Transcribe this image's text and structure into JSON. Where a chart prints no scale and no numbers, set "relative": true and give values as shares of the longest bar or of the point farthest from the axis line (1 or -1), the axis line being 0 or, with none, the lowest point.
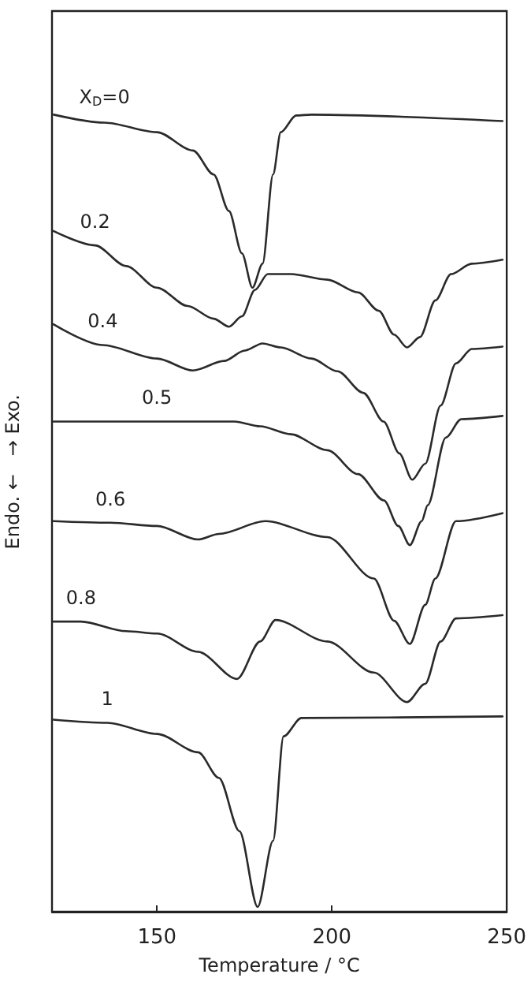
{
  "chart_data": {
    "type": "line",
    "xlabel": "Temperature / °C",
    "ylabel": "Endo. ←   → Exo.",
    "xlim": [
      120,
      250
    ],
    "xticks": [
      150,
      200,
      250
    ],
    "relative": true,
    "marker": "none",
    "line_style": "solid",
    "series": [
      {
        "name": "X$_{D}$=0",
        "color": "#2a2a2a",
        "x": [
          120.5,
          135,
          150,
          160.3,
          166.2,
          170.6,
          174.3,
          177.3,
          180.2,
          183.2,
          185.4,
          189.8,
          194.2,
          248.8
        ],
        "values": [
          1.0,
          0.99,
          0.978,
          0.955,
          0.925,
          0.879,
          0.826,
          0.783,
          0.813,
          0.925,
          0.978,
          0.999,
          1.0,
          0.992
        ]
      },
      {
        "name": "0.2",
        "color": "#2a2a2a",
        "x": [
          120.4,
          132.3,
          141.2,
          150,
          158.8,
          166.2,
          170.6,
          174.3,
          178.0,
          181.7,
          188.3,
          198.7,
          207.5,
          213.4,
          217.8,
          221.5,
          225.2,
          229.6,
          234.1,
          240.0,
          248.8
        ],
        "values": [
          0.854,
          0.836,
          0.81,
          0.783,
          0.76,
          0.744,
          0.734,
          0.747,
          0.78,
          0.8,
          0.8,
          0.793,
          0.777,
          0.754,
          0.724,
          0.708,
          0.721,
          0.767,
          0.8,
          0.813,
          0.818
        ]
      },
      {
        "name": "0.4",
        "color": "#2a2a2a",
        "x": [
          120.4,
          134.5,
          150,
          160.3,
          169.2,
          175.1,
          180.2,
          185.4,
          194.2,
          201.6,
          209,
          214.8,
          219.3,
          223,
          226.7,
          231.1,
          235.5,
          240,
          248.8
        ],
        "values": [
          0.737,
          0.711,
          0.694,
          0.679,
          0.691,
          0.704,
          0.713,
          0.708,
          0.694,
          0.678,
          0.651,
          0.615,
          0.575,
          0.542,
          0.562,
          0.635,
          0.688,
          0.706,
          0.709
        ]
      },
      {
        "name": "0.5",
        "color": "#2a2a2a",
        "x": [
          120.4,
          150,
          172.1,
          179.5,
          188.3,
          198.7,
          207.5,
          214.9,
          219,
          222.3,
          225.7,
          227.4,
          232.6,
          237,
          248.8
        ],
        "values": [
          0.615,
          0.615,
          0.615,
          0.609,
          0.599,
          0.579,
          0.549,
          0.516,
          0.484,
          0.46,
          0.49,
          0.51,
          0.595,
          0.618,
          0.622
        ]
      },
      {
        "name": "0.6",
        "color": "#2a2a2a",
        "x": [
          120.4,
          136.7,
          150,
          161.8,
          167.7,
          181,
          198.7,
          212,
          217.8,
          222.3,
          226.7,
          229.6,
          235.5,
          248.8
        ],
        "values": [
          0.49,
          0.488,
          0.484,
          0.467,
          0.474,
          0.49,
          0.47,
          0.418,
          0.365,
          0.336,
          0.385,
          0.418,
          0.49,
          0.5
        ]
      },
      {
        "name": "0.8",
        "color": "#2a2a2a",
        "x": [
          120.4,
          128.3,
          141.2,
          150,
          161.8,
          172.9,
          179.5,
          183.9,
          198.7,
          212,
          221.5,
          226.7,
          231.1,
          235.5,
          248.8
        ],
        "values": [
          0.364,
          0.364,
          0.352,
          0.349,
          0.326,
          0.292,
          0.339,
          0.366,
          0.339,
          0.3,
          0.263,
          0.286,
          0.339,
          0.368,
          0.372
        ]
      },
      {
        "name": "1",
        "color": "#2a2a2a",
        "x": [
          120.4,
          135.8,
          150,
          161.8,
          167.7,
          173.6,
          178.8,
          183.2,
          186.2,
          191.3,
          248.8
        ],
        "values": [
          0.241,
          0.237,
          0.223,
          0.2,
          0.168,
          0.101,
          0.006,
          0.089,
          0.22,
          0.243,
          0.245
        ]
      }
    ]
  }
}
